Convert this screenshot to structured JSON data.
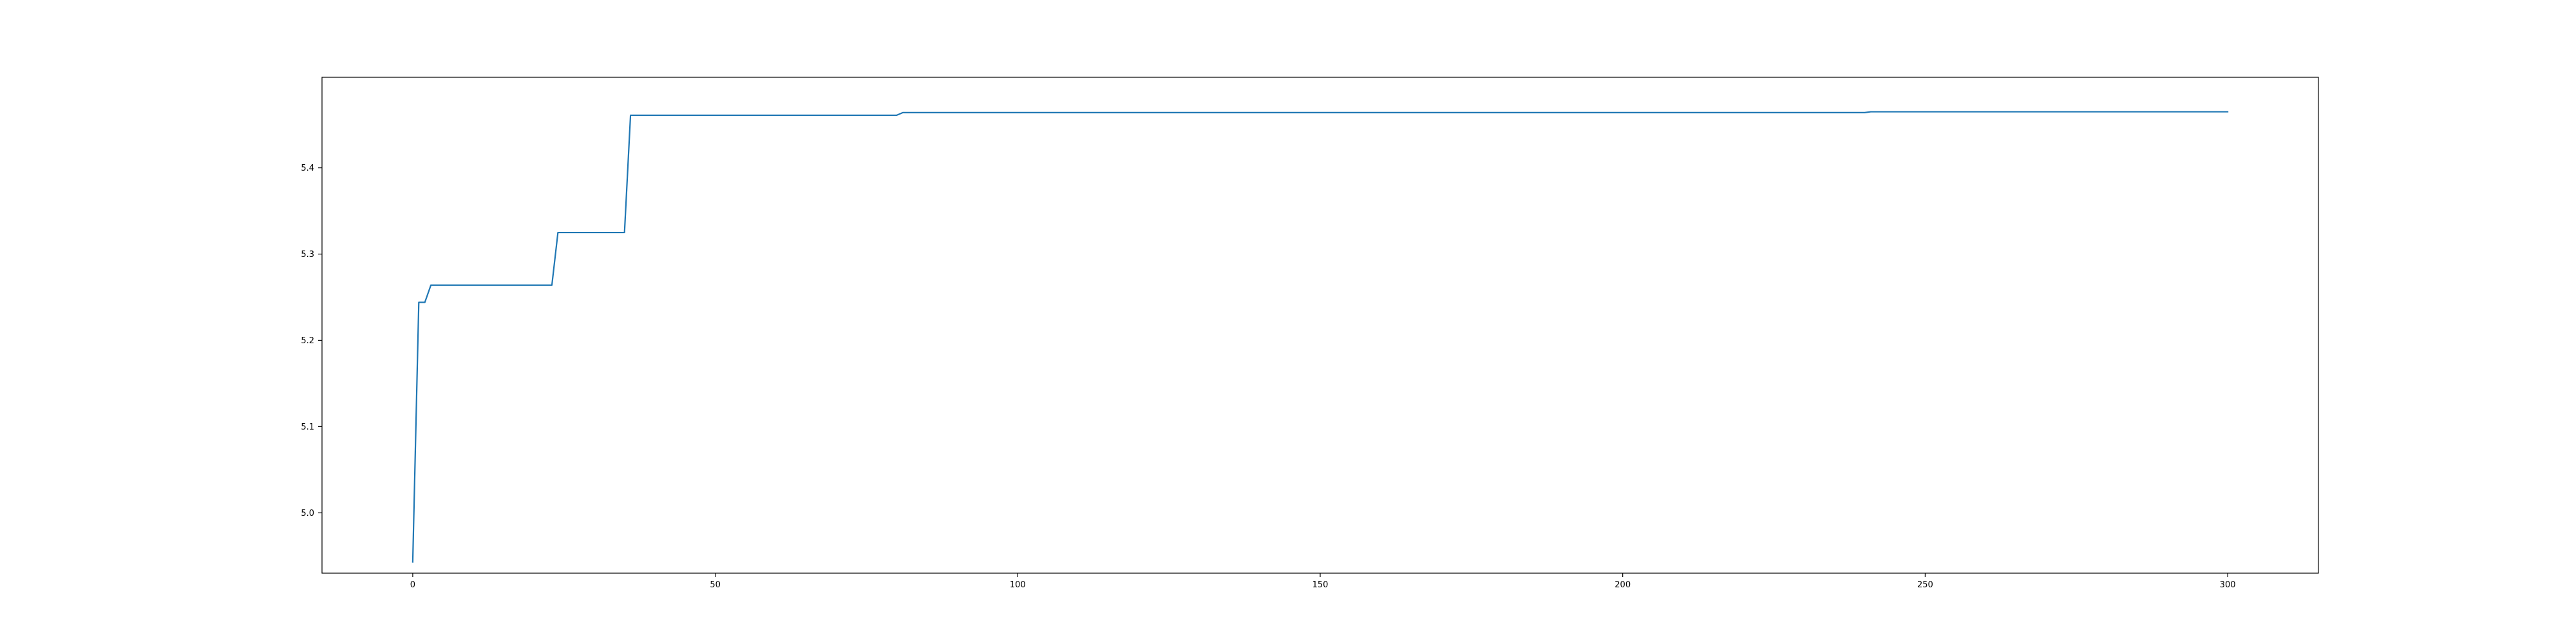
{
  "chart_data": {
    "type": "line",
    "title": "",
    "xlabel": "",
    "ylabel": "",
    "xlim": [
      -15,
      315
    ],
    "ylim": [
      4.93,
      5.505
    ],
    "x_ticks": [
      0,
      50,
      100,
      150,
      200,
      250,
      300
    ],
    "x_tick_labels": [
      "0",
      "50",
      "100",
      "150",
      "200",
      "250",
      "300"
    ],
    "y_ticks": [
      5.0,
      5.1,
      5.2,
      5.3,
      5.4
    ],
    "y_tick_labels": [
      "5.0",
      "5.1",
      "5.2",
      "5.3",
      "5.4"
    ],
    "grid": false,
    "series": [
      {
        "color": "#1f77b4",
        "x": [
          0,
          1,
          2,
          3,
          23,
          24,
          35,
          36,
          50,
          80,
          81,
          240,
          241,
          300
        ],
        "y": [
          4.943,
          5.244,
          5.244,
          5.264,
          5.264,
          5.325,
          5.325,
          5.461,
          5.461,
          5.461,
          5.464,
          5.464,
          5.465,
          5.465
        ]
      }
    ]
  }
}
